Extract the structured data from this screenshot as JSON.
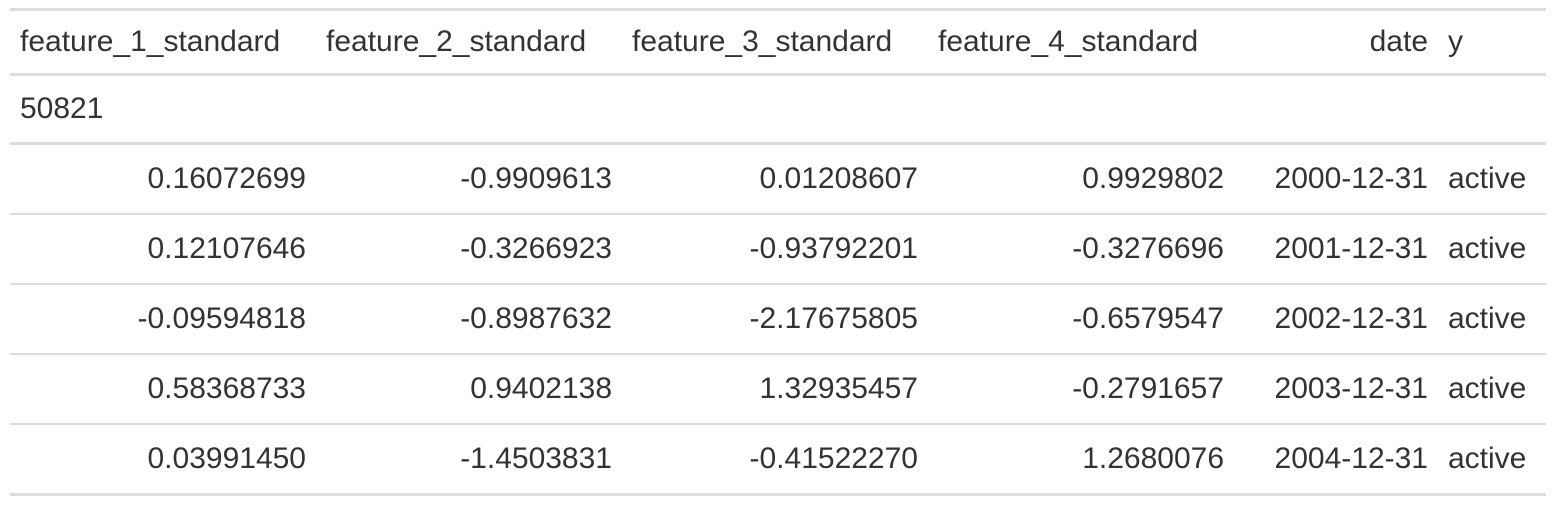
{
  "table": {
    "columns": [
      {
        "label": "feature_1_standard",
        "align": "left"
      },
      {
        "label": "feature_2_standard",
        "align": "left"
      },
      {
        "label": "feature_3_standard",
        "align": "left"
      },
      {
        "label": "feature_4_standard",
        "align": "left"
      },
      {
        "label": "date",
        "align": "right"
      },
      {
        "label": "y",
        "align": "left"
      }
    ],
    "group_label": "50821",
    "rows": [
      [
        "0.16072699",
        "-0.9909613",
        "0.01208607",
        "0.9929802",
        "2000-12-31",
        "active"
      ],
      [
        "0.12107646",
        "-0.3266923",
        "-0.93792201",
        "-0.3276696",
        "2001-12-31",
        "active"
      ],
      [
        "-0.09594818",
        "-0.8987632",
        "-2.17675805",
        "-0.6579547",
        "2002-12-31",
        "active"
      ],
      [
        "0.58368733",
        "0.9402138",
        "1.32935457",
        "-0.2791657",
        "2003-12-31",
        "active"
      ],
      [
        "0.03991450",
        "-1.4503831",
        "-0.41522270",
        "1.2680076",
        "2004-12-31",
        "active"
      ]
    ]
  }
}
